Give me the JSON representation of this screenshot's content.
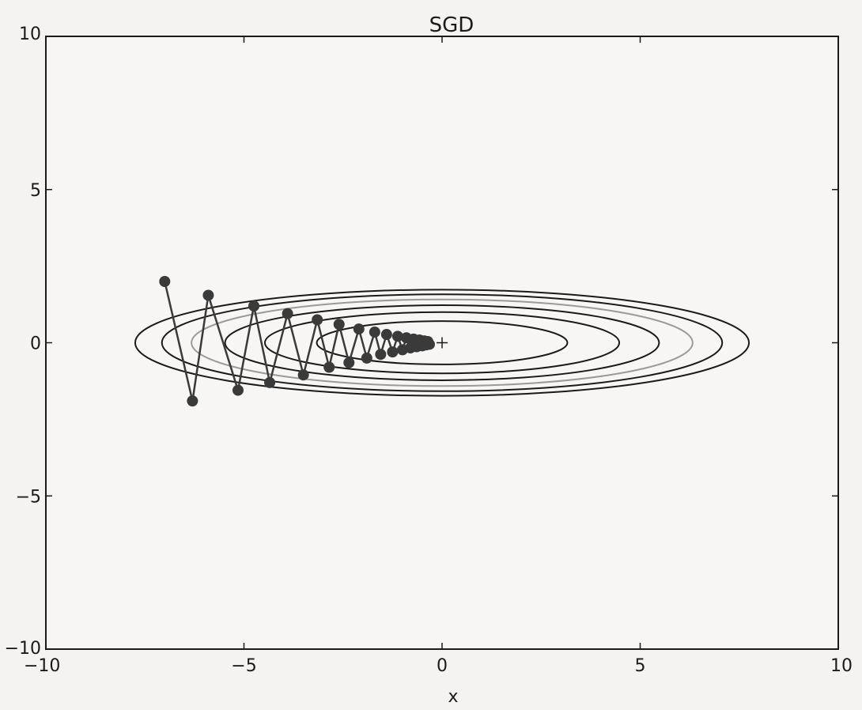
{
  "chart_data": {
    "type": "line",
    "title": "SGD",
    "xlabel": "x",
    "ylabel": "",
    "xlim": [
      -10,
      10
    ],
    "ylim": [
      -10,
      10
    ],
    "x_ticks": [
      {
        "value": -10,
        "label": "−10"
      },
      {
        "value": -5,
        "label": "−5"
      },
      {
        "value": 0,
        "label": "0"
      },
      {
        "value": 5,
        "label": "5"
      },
      {
        "value": 10,
        "label": "10"
      }
    ],
    "y_ticks": [
      {
        "value": -10,
        "label": "−10"
      },
      {
        "value": -5,
        "label": "−5"
      },
      {
        "value": 0,
        "label": "0"
      },
      {
        "value": 5,
        "label": "5"
      },
      {
        "value": 10,
        "label": "10"
      }
    ],
    "grid": false,
    "contour_function": "x^2/20 + y^2",
    "contour_levels": [
      0.5,
      1,
      1.5,
      2,
      2.5,
      3
    ],
    "contour_colors": [
      "#1a1a1a",
      "#1a1a1a",
      "#1a1a1a",
      "#9a9a9a",
      "#1a1a1a",
      "#1a1a1a"
    ],
    "minimum_marker": {
      "x": 0,
      "y": 0,
      "symbol": "+"
    },
    "series": [
      {
        "color": "#3a3a3a",
        "points": [
          {
            "x": -7.0,
            "y": 2.0
          },
          {
            "x": -6.3,
            "y": -1.9
          },
          {
            "x": -5.9,
            "y": 1.55
          },
          {
            "x": -5.15,
            "y": -1.55
          },
          {
            "x": -4.75,
            "y": 1.2
          },
          {
            "x": -4.35,
            "y": -1.3
          },
          {
            "x": -3.9,
            "y": 0.95
          },
          {
            "x": -3.5,
            "y": -1.05
          },
          {
            "x": -3.15,
            "y": 0.75
          },
          {
            "x": -2.85,
            "y": -0.8
          },
          {
            "x": -2.6,
            "y": 0.6
          },
          {
            "x": -2.35,
            "y": -0.65
          },
          {
            "x": -2.1,
            "y": 0.45
          },
          {
            "x": -1.9,
            "y": -0.5
          },
          {
            "x": -1.7,
            "y": 0.35
          },
          {
            "x": -1.55,
            "y": -0.38
          },
          {
            "x": -1.4,
            "y": 0.27
          },
          {
            "x": -1.25,
            "y": -0.3
          },
          {
            "x": -1.12,
            "y": 0.21
          },
          {
            "x": -1.0,
            "y": -0.23
          },
          {
            "x": -0.9,
            "y": 0.16
          },
          {
            "x": -0.8,
            "y": -0.17
          },
          {
            "x": -0.72,
            "y": 0.12
          },
          {
            "x": -0.64,
            "y": -0.13
          },
          {
            "x": -0.57,
            "y": 0.09
          },
          {
            "x": -0.5,
            "y": -0.1
          },
          {
            "x": -0.45,
            "y": 0.06
          },
          {
            "x": -0.4,
            "y": -0.07
          },
          {
            "x": -0.36,
            "y": 0.04
          },
          {
            "x": -0.32,
            "y": -0.05
          }
        ]
      }
    ]
  }
}
